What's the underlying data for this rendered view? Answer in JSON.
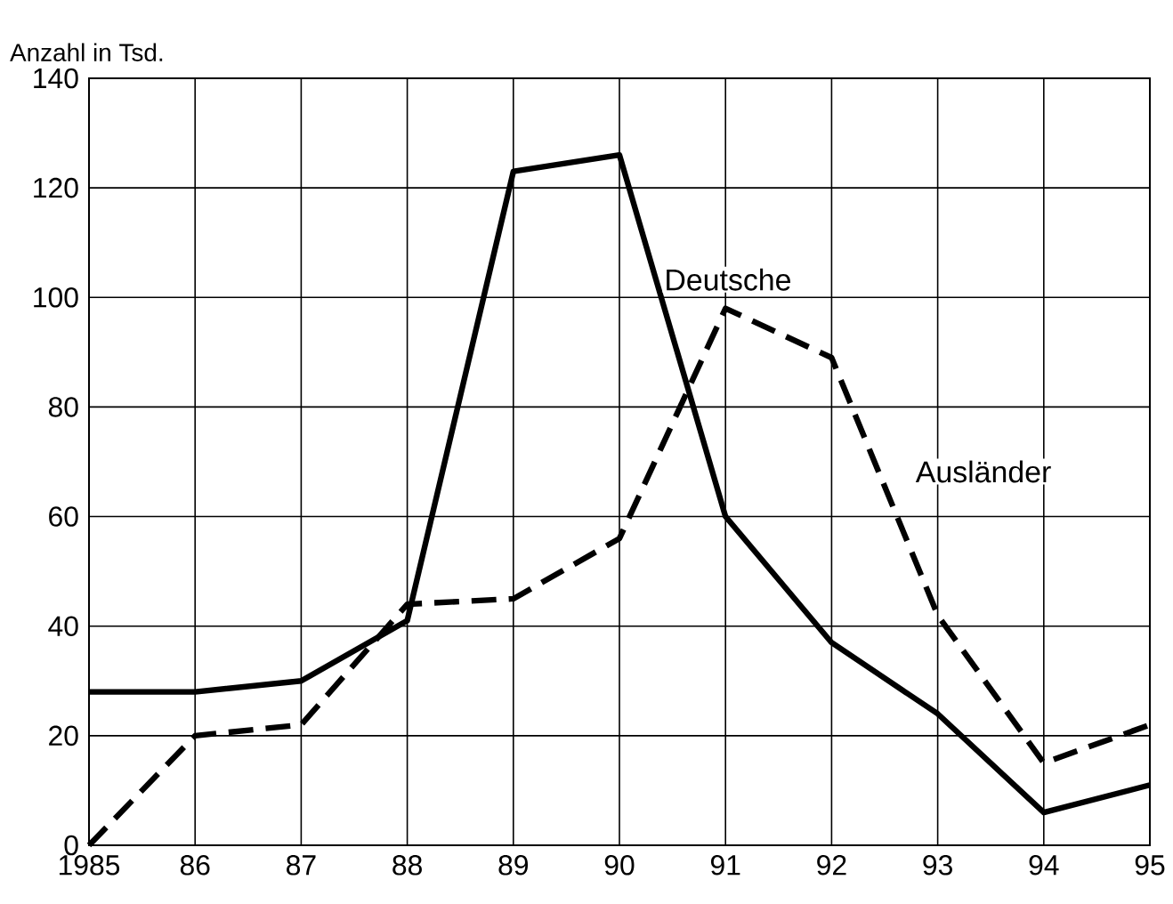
{
  "chart_data": {
    "type": "line",
    "ylabel": "Anzahl in Tsd.",
    "categories": [
      "1985",
      "86",
      "87",
      "88",
      "89",
      "90",
      "91",
      "92",
      "93",
      "94",
      "95"
    ],
    "series": [
      {
        "name": "Deutsche",
        "color": "#000000",
        "line_style": "solid",
        "values": [
          28,
          28,
          30,
          41,
          123,
          126,
          60,
          37,
          24,
          6,
          11
        ]
      },
      {
        "name": "Ausländer",
        "color": "#000000",
        "line_style": "dashed",
        "values": [
          0,
          20,
          22,
          44,
          45,
          56,
          98,
          89,
          42,
          15,
          22
        ]
      }
    ],
    "ylim": [
      0,
      140
    ],
    "yticks": [
      0,
      20,
      40,
      60,
      80,
      100,
      120,
      140
    ],
    "grid": true,
    "marker": "none"
  }
}
